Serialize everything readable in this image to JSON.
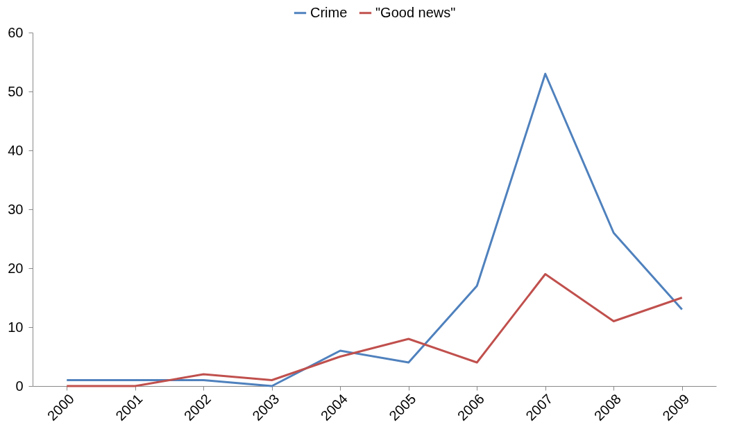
{
  "chart_data": {
    "type": "line",
    "categories": [
      "2000",
      "2001",
      "2002",
      "2003",
      "2004",
      "2005",
      "2006",
      "2007",
      "2008",
      "2009"
    ],
    "series": [
      {
        "name": "Crime",
        "color": "#4f81bd",
        "values": [
          1,
          1,
          1,
          0,
          6,
          4,
          17,
          53,
          26,
          13
        ]
      },
      {
        "name": "\"Good news\"",
        "color": "#c0504d",
        "values": [
          0,
          0,
          2,
          1,
          5,
          8,
          4,
          19,
          11,
          15
        ]
      }
    ],
    "ylim": [
      0,
      60
    ],
    "yticks": [
      0,
      10,
      20,
      30,
      40,
      50,
      60
    ],
    "grid": false,
    "legend": "top"
  }
}
